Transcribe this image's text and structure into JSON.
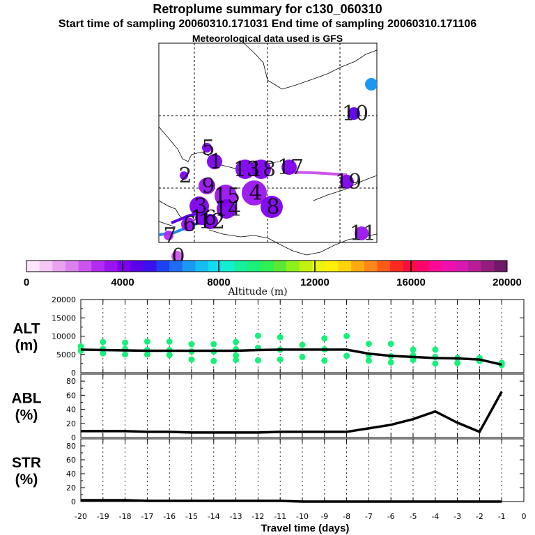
{
  "header": {
    "title": "Retroplume summary for c130_060310",
    "sampling_line": "Start time of sampling 20060310.171031     End time of sampling 20060310.171106",
    "met_line": "Meteorological data used is GFS"
  },
  "colorbar": {
    "label": "Altitude (m)",
    "tick_labels": [
      "0",
      "4000",
      "8000",
      "12000",
      "16000",
      "20000"
    ],
    "min": 0,
    "max": 20000,
    "colors": [
      "#fde6fd",
      "#f5c8f5",
      "#eaa3ee",
      "#dd80ec",
      "#cc55ee",
      "#b22bf0",
      "#9a14f0",
      "#8000ee",
      "#5a00ea",
      "#3a10ee",
      "#2040f6",
      "#1f6cf2",
      "#1a98f2",
      "#14bef2",
      "#10def0",
      "#12f0cf",
      "#14f09c",
      "#18f07a",
      "#2cf050",
      "#5ae834",
      "#8ef01a",
      "#c4f010",
      "#eaf40e",
      "#fff00a",
      "#ffd20c",
      "#ffaa10",
      "#ff8618",
      "#ff5a1a",
      "#ff2a1e",
      "#ff0c40",
      "#ff066a",
      "#ff0a96",
      "#f010b0",
      "#d818b0",
      "#b81c96",
      "#941c7c",
      "#6e1a68"
    ]
  },
  "map": {
    "plumes": [
      {
        "label": "0",
        "value": 2500
      },
      {
        "label": "7",
        "value": 2800
      },
      {
        "label": "2",
        "value": 3800
      },
      {
        "label": "5",
        "value": 3900
      },
      {
        "label": "1",
        "value": 3900
      },
      {
        "label": "13",
        "value": 3800
      },
      {
        "label": "18",
        "value": 4000
      },
      {
        "label": "17",
        "value": 3800
      },
      {
        "label": "4",
        "value": 3600
      },
      {
        "label": "15",
        "value": 3700
      },
      {
        "label": "9",
        "value": 3700
      },
      {
        "label": "14",
        "value": 3800
      },
      {
        "label": "3",
        "value": 3800
      },
      {
        "label": "16",
        "value": 3900
      },
      {
        "label": "12",
        "value": 3900
      },
      {
        "label": "6",
        "value": 3500
      },
      {
        "label": "8",
        "value": 4200
      },
      {
        "label": "19",
        "value": 4300
      },
      {
        "label": "11",
        "value": 3600
      },
      {
        "label": "10",
        "value": 4600
      }
    ]
  },
  "chart_data": [
    {
      "type": "scatter",
      "ylabel": "ALT (m)",
      "ylabel_lines": [
        "ALT",
        "(m)"
      ],
      "ylim": [
        0,
        20000
      ],
      "yticks": [
        "0",
        "5000",
        "10000",
        "15000",
        "20000"
      ],
      "series": [
        {
          "name": "mean altitude",
          "x": [
            -20,
            -19,
            -18,
            -17,
            -16,
            -15,
            -14,
            -13,
            -12,
            -11,
            -10,
            -9,
            -8,
            -7,
            -6,
            -5,
            -4,
            -3,
            -2,
            -1
          ],
          "values": [
            6300,
            6200,
            6100,
            6000,
            6000,
            6000,
            6000,
            6000,
            6200,
            6300,
            6300,
            6300,
            6300,
            5200,
            4600,
            4300,
            4000,
            3900,
            3600,
            2200
          ]
        },
        {
          "name": "cluster points",
          "points": [
            [
              -20,
              7200
            ],
            [
              -20,
              6000
            ],
            [
              -19,
              8400
            ],
            [
              -19,
              6500
            ],
            [
              -19,
              5300
            ],
            [
              -18,
              8200
            ],
            [
              -18,
              6500
            ],
            [
              -18,
              5000
            ],
            [
              -17,
              8500
            ],
            [
              -17,
              6200
            ],
            [
              -17,
              5000
            ],
            [
              -16,
              8500
            ],
            [
              -16,
              6200
            ],
            [
              -16,
              4800
            ],
            [
              -15,
              7800
            ],
            [
              -15,
              5800
            ],
            [
              -15,
              3600
            ],
            [
              -14,
              7800
            ],
            [
              -14,
              5800
            ],
            [
              -14,
              3200
            ],
            [
              -13,
              8400
            ],
            [
              -13,
              6400
            ],
            [
              -13,
              4700
            ],
            [
              -13,
              3500
            ],
            [
              -12,
              10100
            ],
            [
              -12,
              6800
            ],
            [
              -12,
              3400
            ],
            [
              -11,
              9700
            ],
            [
              -11,
              6300
            ],
            [
              -11,
              3600
            ],
            [
              -10,
              7600
            ],
            [
              -10,
              4300
            ],
            [
              -9,
              9400
            ],
            [
              -9,
              6400
            ],
            [
              -9,
              3300
            ],
            [
              -8,
              10000
            ],
            [
              -8,
              4600
            ],
            [
              -7,
              7900
            ],
            [
              -7,
              4800
            ],
            [
              -7,
              3300
            ],
            [
              -6,
              7900
            ],
            [
              -6,
              4500
            ],
            [
              -6,
              2800
            ],
            [
              -5,
              6300
            ],
            [
              -5,
              4700
            ],
            [
              -5,
              3500
            ],
            [
              -4,
              6300
            ],
            [
              -4,
              4300
            ],
            [
              -4,
              2500
            ],
            [
              -3,
              4000
            ],
            [
              -3,
              2600
            ],
            [
              -2,
              4000
            ],
            [
              -2,
              3200
            ],
            [
              -1,
              2700
            ],
            [
              -1,
              2100
            ]
          ]
        }
      ]
    },
    {
      "type": "line",
      "ylabel": "ABL (%)",
      "ylabel_lines": [
        "ABL",
        "(%)"
      ],
      "ylim": [
        0,
        90
      ],
      "yticks": [
        "0",
        "20",
        "40",
        "60",
        "80"
      ],
      "x": [
        -20,
        -19,
        -18,
        -17,
        -16,
        -15,
        -14,
        -13,
        -12,
        -11,
        -10,
        -9,
        -8,
        -7,
        -6,
        -5,
        -4,
        -3,
        -2,
        -1
      ],
      "values": [
        9,
        9,
        9,
        8,
        8,
        7,
        7,
        7,
        7,
        8,
        8,
        8,
        8,
        13,
        18,
        26,
        37,
        21,
        8,
        65
      ]
    },
    {
      "type": "line",
      "ylabel": "STR (%)",
      "ylabel_lines": [
        "STR",
        "(%)"
      ],
      "ylim": [
        0,
        90
      ],
      "yticks": [
        "0",
        "20",
        "40",
        "60",
        "80"
      ],
      "x": [
        -20,
        -19,
        -18,
        -17,
        -16,
        -15,
        -14,
        -13,
        -12,
        -11,
        -10,
        -9,
        -8,
        -7,
        -6,
        -5,
        -4,
        -3,
        -2,
        -1
      ],
      "values": [
        2,
        2,
        2,
        1,
        1,
        1,
        1,
        1,
        1,
        1,
        0,
        0,
        0,
        0,
        0,
        0,
        0,
        0,
        0,
        0
      ]
    }
  ],
  "xaxis": {
    "label": "Travel time (days)",
    "min": -20,
    "max": 0,
    "ticks": [
      "-20",
      "-19",
      "-18",
      "-17",
      "-16",
      "-15",
      "-14",
      "-13",
      "-12",
      "-11",
      "-10",
      "-9",
      "-8",
      "-7",
      "-6",
      "-5",
      "-4",
      "-3",
      "-2",
      "-1",
      "0"
    ]
  }
}
